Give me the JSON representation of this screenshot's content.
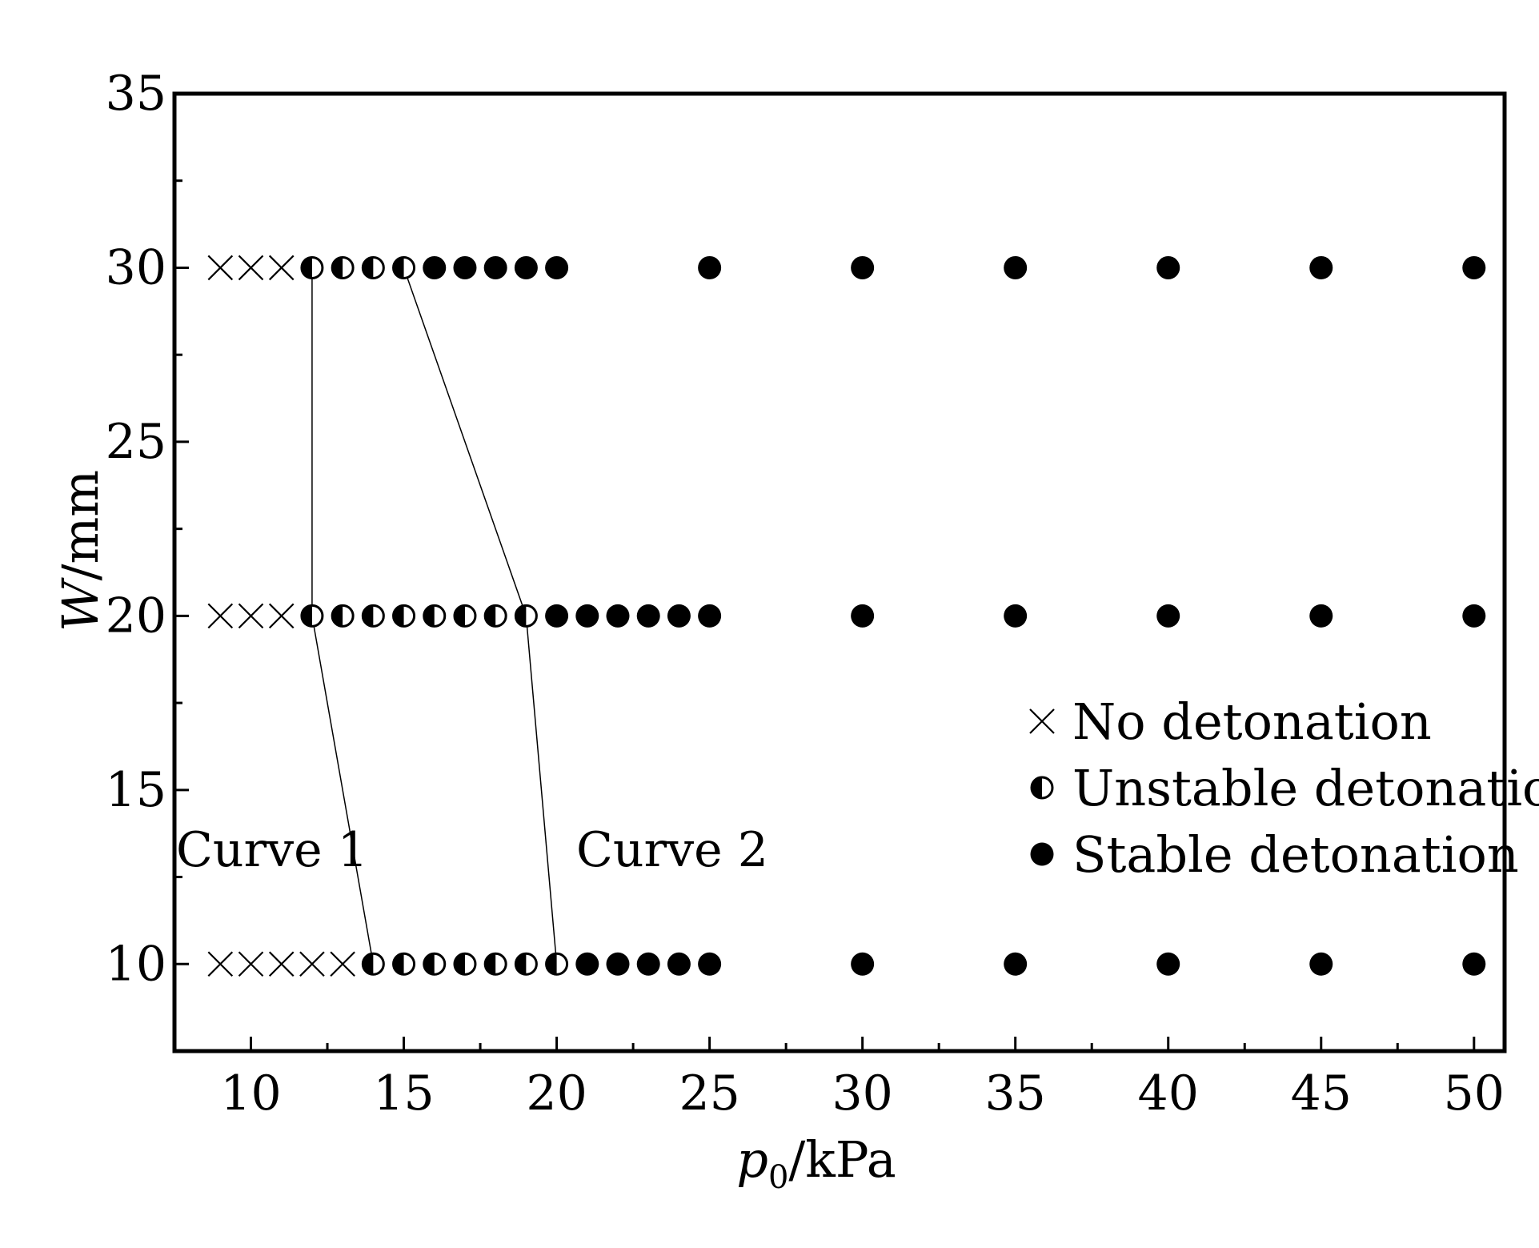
{
  "chart_data": {
    "type": "scatter",
    "title": "",
    "xlabel": {
      "main": "p",
      "sub": "0",
      "unit": "/kPa"
    },
    "ylabel": {
      "main": "W",
      "unit": "/mm"
    },
    "xlim": [
      7.5,
      51
    ],
    "ylim": [
      7.5,
      35
    ],
    "x_ticks": [
      10,
      15,
      20,
      25,
      30,
      35,
      40,
      45,
      50
    ],
    "y_ticks": [
      10,
      15,
      20,
      25,
      30,
      35
    ],
    "x_tick_labels": [
      "10",
      "15",
      "20",
      "25",
      "30",
      "35",
      "40",
      "45",
      "50"
    ],
    "y_tick_labels": [
      "10",
      "15",
      "20",
      "25",
      "30",
      "35"
    ],
    "grid": false,
    "legend_position": "right",
    "series": [
      {
        "name": "No detonation",
        "marker": "x",
        "points": [
          [
            9,
            30
          ],
          [
            10,
            30
          ],
          [
            11,
            30
          ],
          [
            9,
            20
          ],
          [
            10,
            20
          ],
          [
            11,
            20
          ],
          [
            9,
            10
          ],
          [
            10,
            10
          ],
          [
            11,
            10
          ],
          [
            12,
            10
          ],
          [
            13,
            10
          ]
        ]
      },
      {
        "name": "Unstable detonation",
        "marker": "half-filled-circle",
        "points": [
          [
            12,
            30
          ],
          [
            13,
            30
          ],
          [
            14,
            30
          ],
          [
            15,
            30
          ],
          [
            12,
            20
          ],
          [
            13,
            20
          ],
          [
            14,
            20
          ],
          [
            15,
            20
          ],
          [
            16,
            20
          ],
          [
            17,
            20
          ],
          [
            18,
            20
          ],
          [
            19,
            20
          ],
          [
            14,
            10
          ],
          [
            15,
            10
          ],
          [
            16,
            10
          ],
          [
            17,
            10
          ],
          [
            18,
            10
          ],
          [
            19,
            10
          ],
          [
            20,
            10
          ]
        ]
      },
      {
        "name": "Stable detonation",
        "marker": "filled-circle",
        "points": [
          [
            16,
            30
          ],
          [
            17,
            30
          ],
          [
            18,
            30
          ],
          [
            19,
            30
          ],
          [
            20,
            30
          ],
          [
            25,
            30
          ],
          [
            30,
            30
          ],
          [
            35,
            30
          ],
          [
            40,
            30
          ],
          [
            45,
            30
          ],
          [
            50,
            30
          ],
          [
            20,
            20
          ],
          [
            21,
            20
          ],
          [
            22,
            20
          ],
          [
            23,
            20
          ],
          [
            24,
            20
          ],
          [
            25,
            20
          ],
          [
            30,
            20
          ],
          [
            35,
            20
          ],
          [
            40,
            20
          ],
          [
            45,
            20
          ],
          [
            50,
            20
          ],
          [
            21,
            10
          ],
          [
            22,
            10
          ],
          [
            23,
            10
          ],
          [
            24,
            10
          ],
          [
            25,
            10
          ],
          [
            30,
            10
          ],
          [
            35,
            10
          ],
          [
            40,
            10
          ],
          [
            45,
            10
          ],
          [
            50,
            10
          ]
        ]
      }
    ],
    "boundary_curves": [
      {
        "label": "Curve 1",
        "points": [
          [
            12,
            30
          ],
          [
            12,
            20
          ],
          [
            14,
            10
          ]
        ]
      },
      {
        "label": "Curve 2",
        "points": [
          [
            15,
            30
          ],
          [
            19,
            20
          ],
          [
            20,
            10
          ]
        ]
      }
    ]
  }
}
